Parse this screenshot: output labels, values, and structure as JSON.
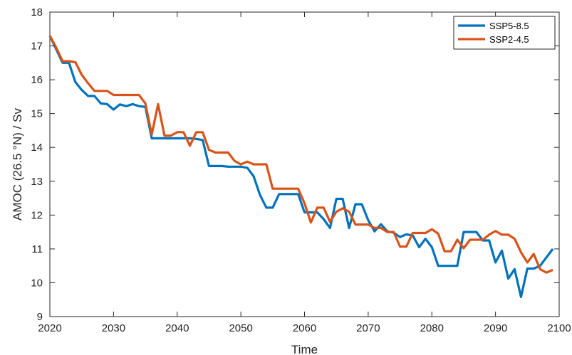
{
  "chart_data": {
    "type": "line",
    "xlabel": "Time",
    "ylabel": "AMOC (26.5 °N) / Sv",
    "xlim": [
      2020,
      2100
    ],
    "ylim": [
      9,
      18
    ],
    "xticks": [
      2020,
      2030,
      2040,
      2050,
      2060,
      2070,
      2080,
      2090,
      2100
    ],
    "yticks": [
      9,
      10,
      11,
      12,
      13,
      14,
      15,
      16,
      17,
      18
    ],
    "grid": false,
    "legend_position": "top-right",
    "x": [
      2020,
      2021,
      2022,
      2023,
      2024,
      2025,
      2026,
      2027,
      2028,
      2029,
      2030,
      2031,
      2032,
      2033,
      2034,
      2035,
      2036,
      2037,
      2038,
      2039,
      2040,
      2041,
      2042,
      2043,
      2044,
      2045,
      2046,
      2047,
      2048,
      2049,
      2050,
      2051,
      2052,
      2053,
      2054,
      2055,
      2056,
      2057,
      2058,
      2059,
      2060,
      2061,
      2062,
      2063,
      2064,
      2065,
      2066,
      2067,
      2068,
      2069,
      2070,
      2071,
      2072,
      2073,
      2074,
      2075,
      2076,
      2077,
      2078,
      2079,
      2080,
      2081,
      2082,
      2083,
      2084,
      2085,
      2086,
      2087,
      2088,
      2089,
      2090,
      2091,
      2092,
      2093,
      2094,
      2095,
      2096,
      2097,
      2098,
      2099
    ],
    "series": [
      {
        "name": "SSP5-8.5",
        "color": "#0072BD",
        "values": [
          17.3,
          16.9,
          16.5,
          16.5,
          15.93,
          15.7,
          15.52,
          15.52,
          15.3,
          15.28,
          15.12,
          15.27,
          15.22,
          15.28,
          15.22,
          15.2,
          14.27,
          14.27,
          14.27,
          14.27,
          14.27,
          14.27,
          14.27,
          14.25,
          14.22,
          13.45,
          13.45,
          13.45,
          13.43,
          13.43,
          13.43,
          13.4,
          13.15,
          12.6,
          12.22,
          12.22,
          12.62,
          12.62,
          12.62,
          12.62,
          12.08,
          12.08,
          12.08,
          11.88,
          11.62,
          12.48,
          12.48,
          11.62,
          12.32,
          12.32,
          11.85,
          11.52,
          11.73,
          11.52,
          11.48,
          11.35,
          11.43,
          11.4,
          11.05,
          11.3,
          11.05,
          10.5,
          10.5,
          10.5,
          10.5,
          11.5,
          11.5,
          11.5,
          11.25,
          11.25,
          10.6,
          10.95,
          10.12,
          10.4,
          9.58,
          10.42,
          10.42,
          10.5,
          10.75,
          11.0
        ]
      },
      {
        "name": "SSP2-4.5",
        "color": "#D95319",
        "values": [
          17.3,
          16.95,
          16.55,
          16.55,
          16.52,
          16.15,
          15.9,
          15.67,
          15.67,
          15.67,
          15.55,
          15.55,
          15.55,
          15.55,
          15.55,
          15.3,
          14.38,
          15.28,
          14.35,
          14.35,
          14.45,
          14.45,
          14.05,
          14.45,
          14.45,
          13.93,
          13.85,
          13.85,
          13.85,
          13.6,
          13.5,
          13.58,
          13.5,
          13.5,
          13.5,
          12.78,
          12.78,
          12.78,
          12.78,
          12.78,
          12.35,
          11.78,
          12.22,
          12.22,
          11.8,
          12.1,
          12.2,
          12.1,
          11.72,
          11.72,
          11.72,
          11.62,
          11.62,
          11.5,
          11.5,
          11.07,
          11.07,
          11.47,
          11.47,
          11.47,
          11.58,
          11.45,
          10.93,
          10.93,
          11.27,
          11.02,
          11.27,
          11.27,
          11.27,
          11.42,
          11.53,
          11.42,
          11.42,
          11.3,
          10.9,
          10.6,
          10.85,
          10.4,
          10.3,
          10.38
        ]
      }
    ]
  }
}
